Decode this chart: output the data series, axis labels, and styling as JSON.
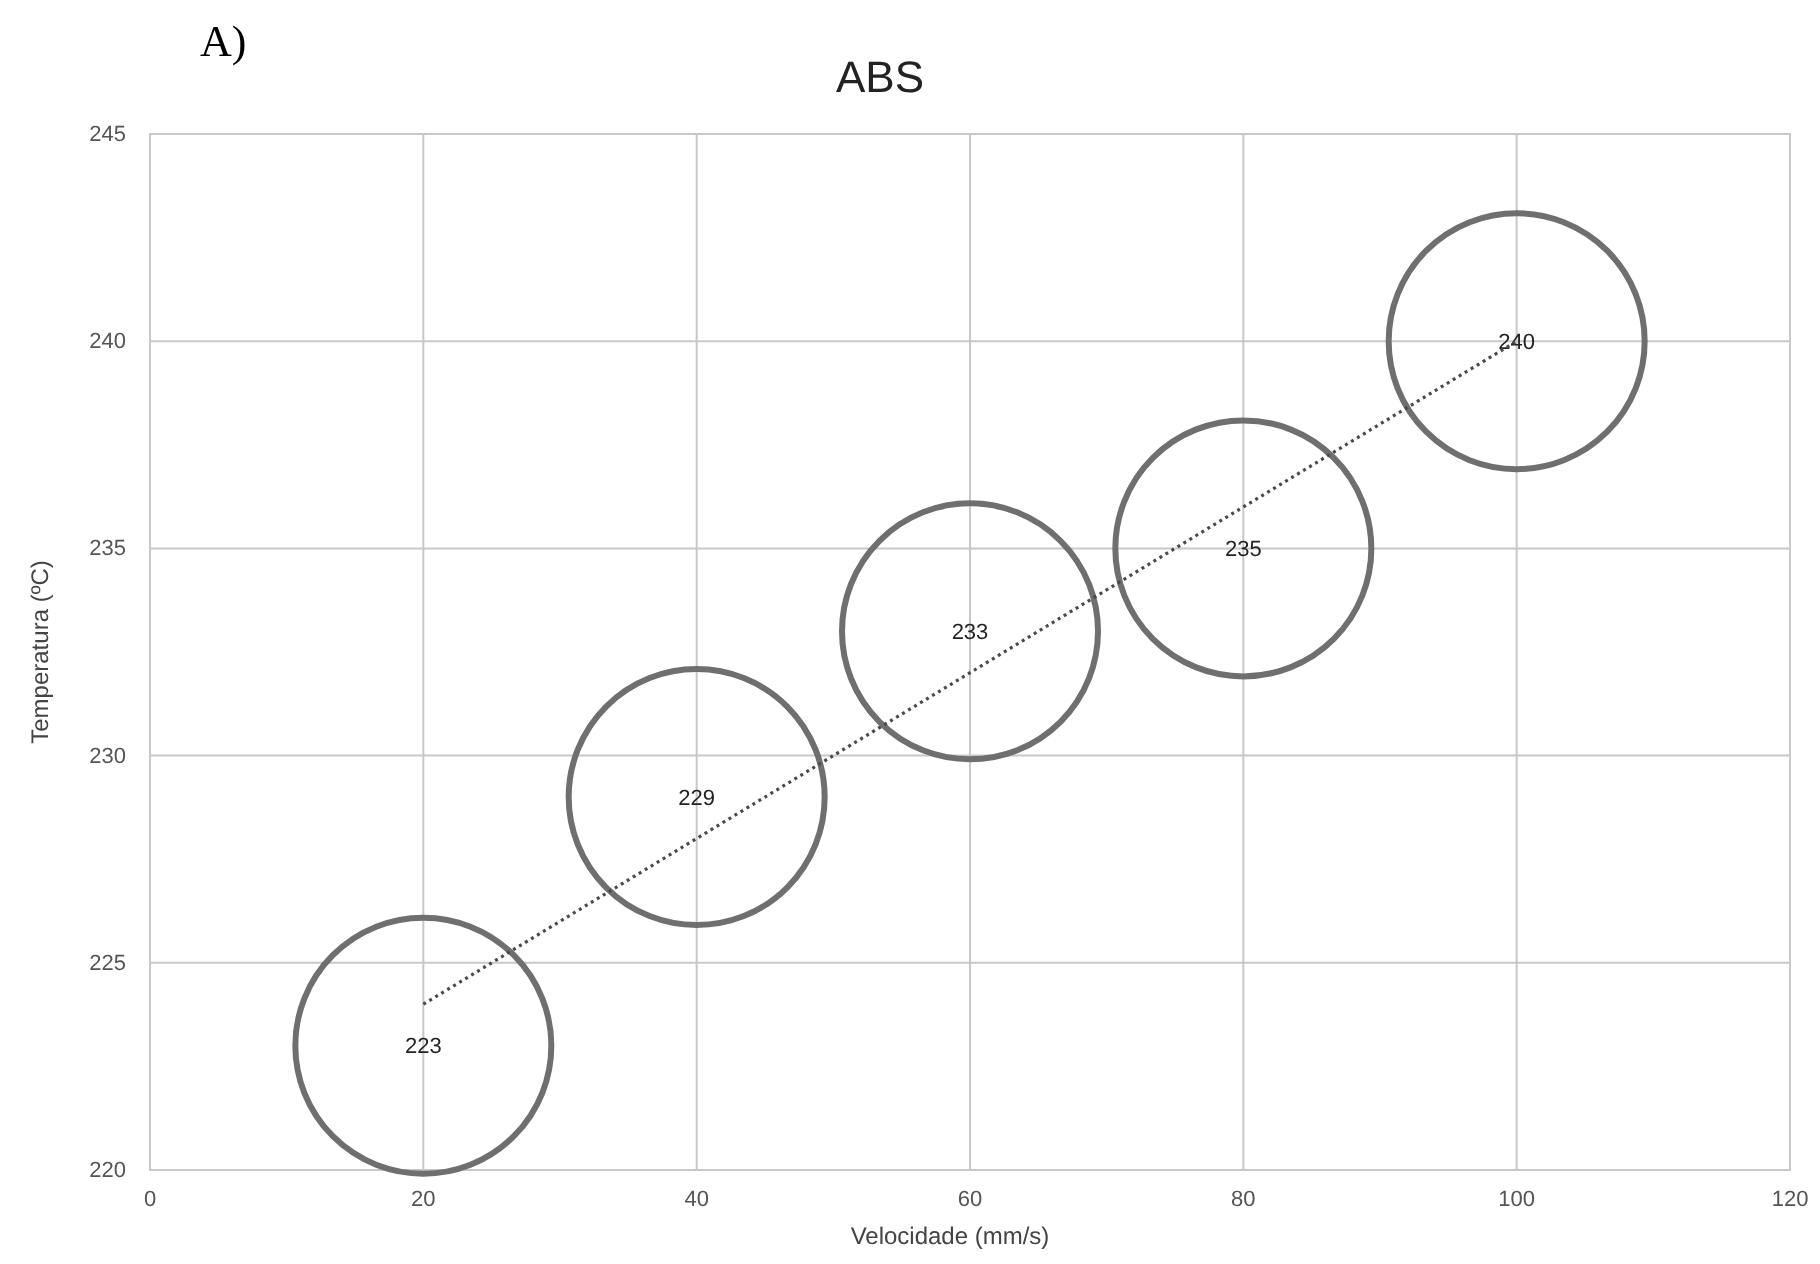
{
  "chart_data": {
    "type": "bubble",
    "title": "ABS",
    "xlabel": "Velocidade (mm/s)",
    "ylabel": "Temperatura (ºC)",
    "annotations": [
      "A)"
    ],
    "xlim": [
      0,
      120
    ],
    "xticks": [
      0,
      20,
      40,
      60,
      80,
      100,
      120
    ],
    "ylim": [
      220,
      245
    ],
    "yticks": [
      220,
      225,
      230,
      235,
      240,
      245
    ],
    "grid": true,
    "series": [
      {
        "type": "bubble",
        "color": "#6f6f6f",
        "x": [
          20,
          40,
          60,
          80,
          100
        ],
        "values": [
          223,
          229,
          233,
          235,
          240
        ],
        "sizes": [
          1,
          1,
          1,
          1,
          1
        ],
        "value_labels": [
          "223",
          "229",
          "233",
          "235",
          "240"
        ]
      },
      {
        "type": "line",
        "color": "#4a4a4a",
        "x": [
          20,
          100
        ],
        "values": [
          224,
          240
        ],
        "line_style": "dotted",
        "marker": "none"
      }
    ]
  }
}
